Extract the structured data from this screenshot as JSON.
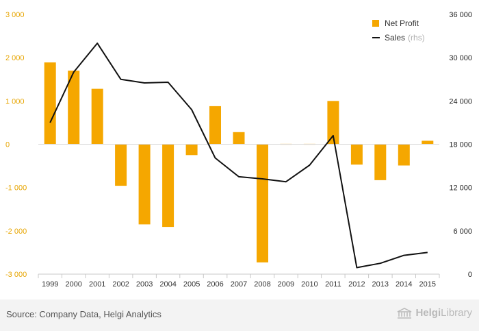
{
  "chart_data": {
    "type": "bar+line",
    "categories": [
      "1999",
      "2000",
      "2001",
      "2002",
      "2003",
      "2004",
      "2005",
      "2006",
      "2007",
      "2008",
      "2009",
      "2010",
      "2011",
      "2012",
      "2013",
      "2014",
      "2015"
    ],
    "series": [
      {
        "name": "Net Profit",
        "type": "bar",
        "axis": "left",
        "color": "#f5a700",
        "values": [
          1890,
          1700,
          1280,
          -960,
          -1850,
          -1910,
          -250,
          880,
          280,
          -2730,
          10,
          10,
          1000,
          -470,
          -830,
          -490,
          80
        ]
      },
      {
        "name": "Sales",
        "name_suffix": "(rhs)",
        "type": "line",
        "axis": "right",
        "color": "#111111",
        "values": [
          21000,
          28000,
          32000,
          27000,
          26500,
          26600,
          22800,
          16100,
          13500,
          13200,
          12800,
          15100,
          19200,
          900,
          1500,
          2600,
          3000
        ]
      }
    ],
    "left_axis": {
      "min": -3000,
      "max": 3000,
      "ticks": [
        -3000,
        -2000,
        -1000,
        0,
        1000,
        2000,
        3000
      ],
      "tick_labels": [
        "-3 000",
        "-2 000",
        "-1 000",
        "0",
        "1 000",
        "2 000",
        "3 000"
      ]
    },
    "right_axis": {
      "min": 0,
      "max": 36000,
      "ticks": [
        0,
        6000,
        12000,
        18000,
        24000,
        30000,
        36000
      ],
      "tick_labels": [
        "0",
        "6 000",
        "12 000",
        "18 000",
        "24 000",
        "30 000",
        "36 000"
      ]
    },
    "legend_position": "top-right",
    "grid": false
  },
  "footer": {
    "source": "Source: Company Data, Helgi Analytics",
    "brand_prefix": "Helgi",
    "brand_suffix": "Library"
  },
  "colors": {
    "bar": "#f5a700",
    "line": "#111111",
    "left_axis_text": "#e7a500",
    "footer_bg": "#f3f3f3"
  }
}
